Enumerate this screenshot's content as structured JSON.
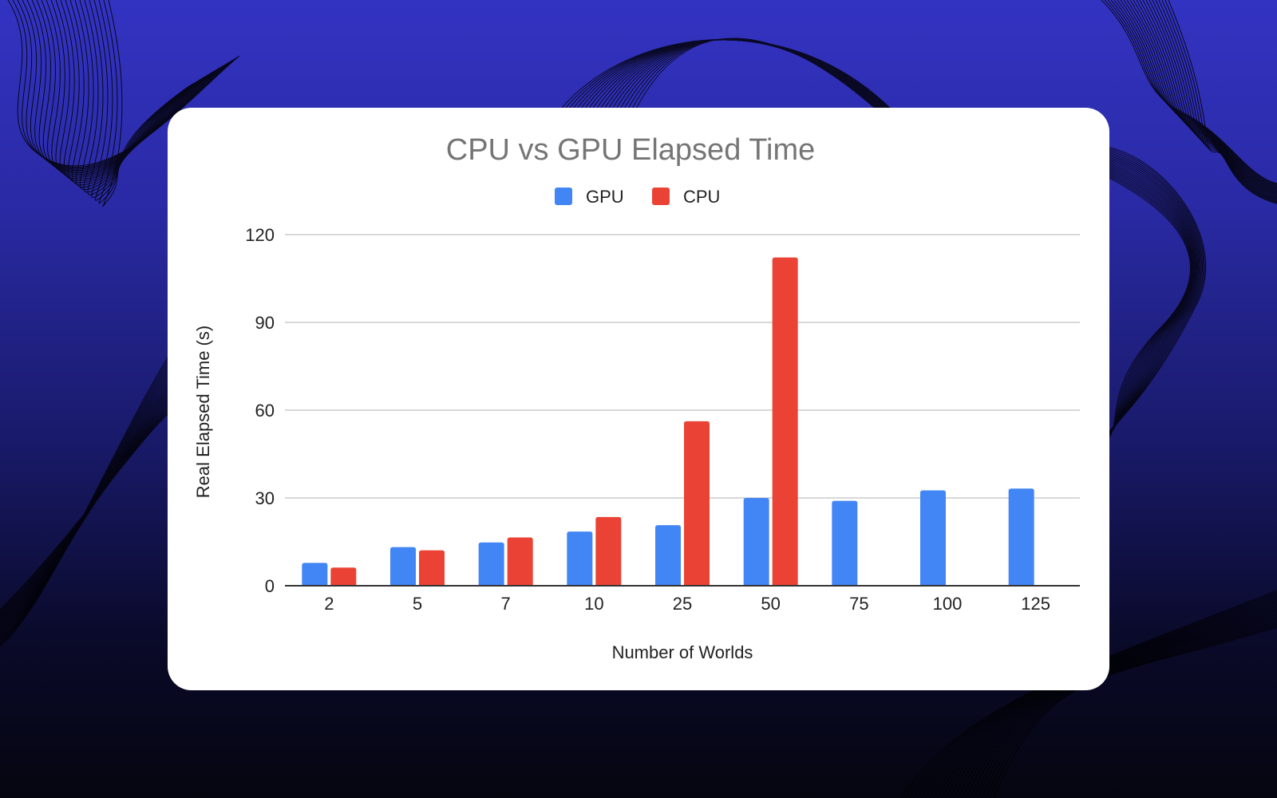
{
  "colors": {
    "gpu": "#4285f4",
    "cpu": "#ea4335",
    "grid": "#cccccc",
    "axis": "#333333",
    "title": "#757575"
  },
  "chart_data": {
    "type": "bar",
    "title": "CPU vs GPU Elapsed Time",
    "xlabel": "Number of Worlds",
    "ylabel": "Real Elapsed Time (s)",
    "categories": [
      "2",
      "5",
      "7",
      "10",
      "25",
      "50",
      "75",
      "100",
      "125"
    ],
    "series": [
      {
        "name": "GPU",
        "color": "#4285f4",
        "values": [
          7.8,
          13.2,
          14.8,
          18.5,
          20.7,
          30,
          29,
          32.6,
          33.2
        ]
      },
      {
        "name": "CPU",
        "color": "#ea4335",
        "values": [
          6.2,
          12.1,
          16.5,
          23.5,
          56.2,
          112.2,
          null,
          null,
          null
        ]
      }
    ],
    "ylim": [
      0,
      120
    ],
    "yticks": [
      0,
      30,
      60,
      90,
      120
    ],
    "grid": true,
    "legend": "top-center"
  }
}
